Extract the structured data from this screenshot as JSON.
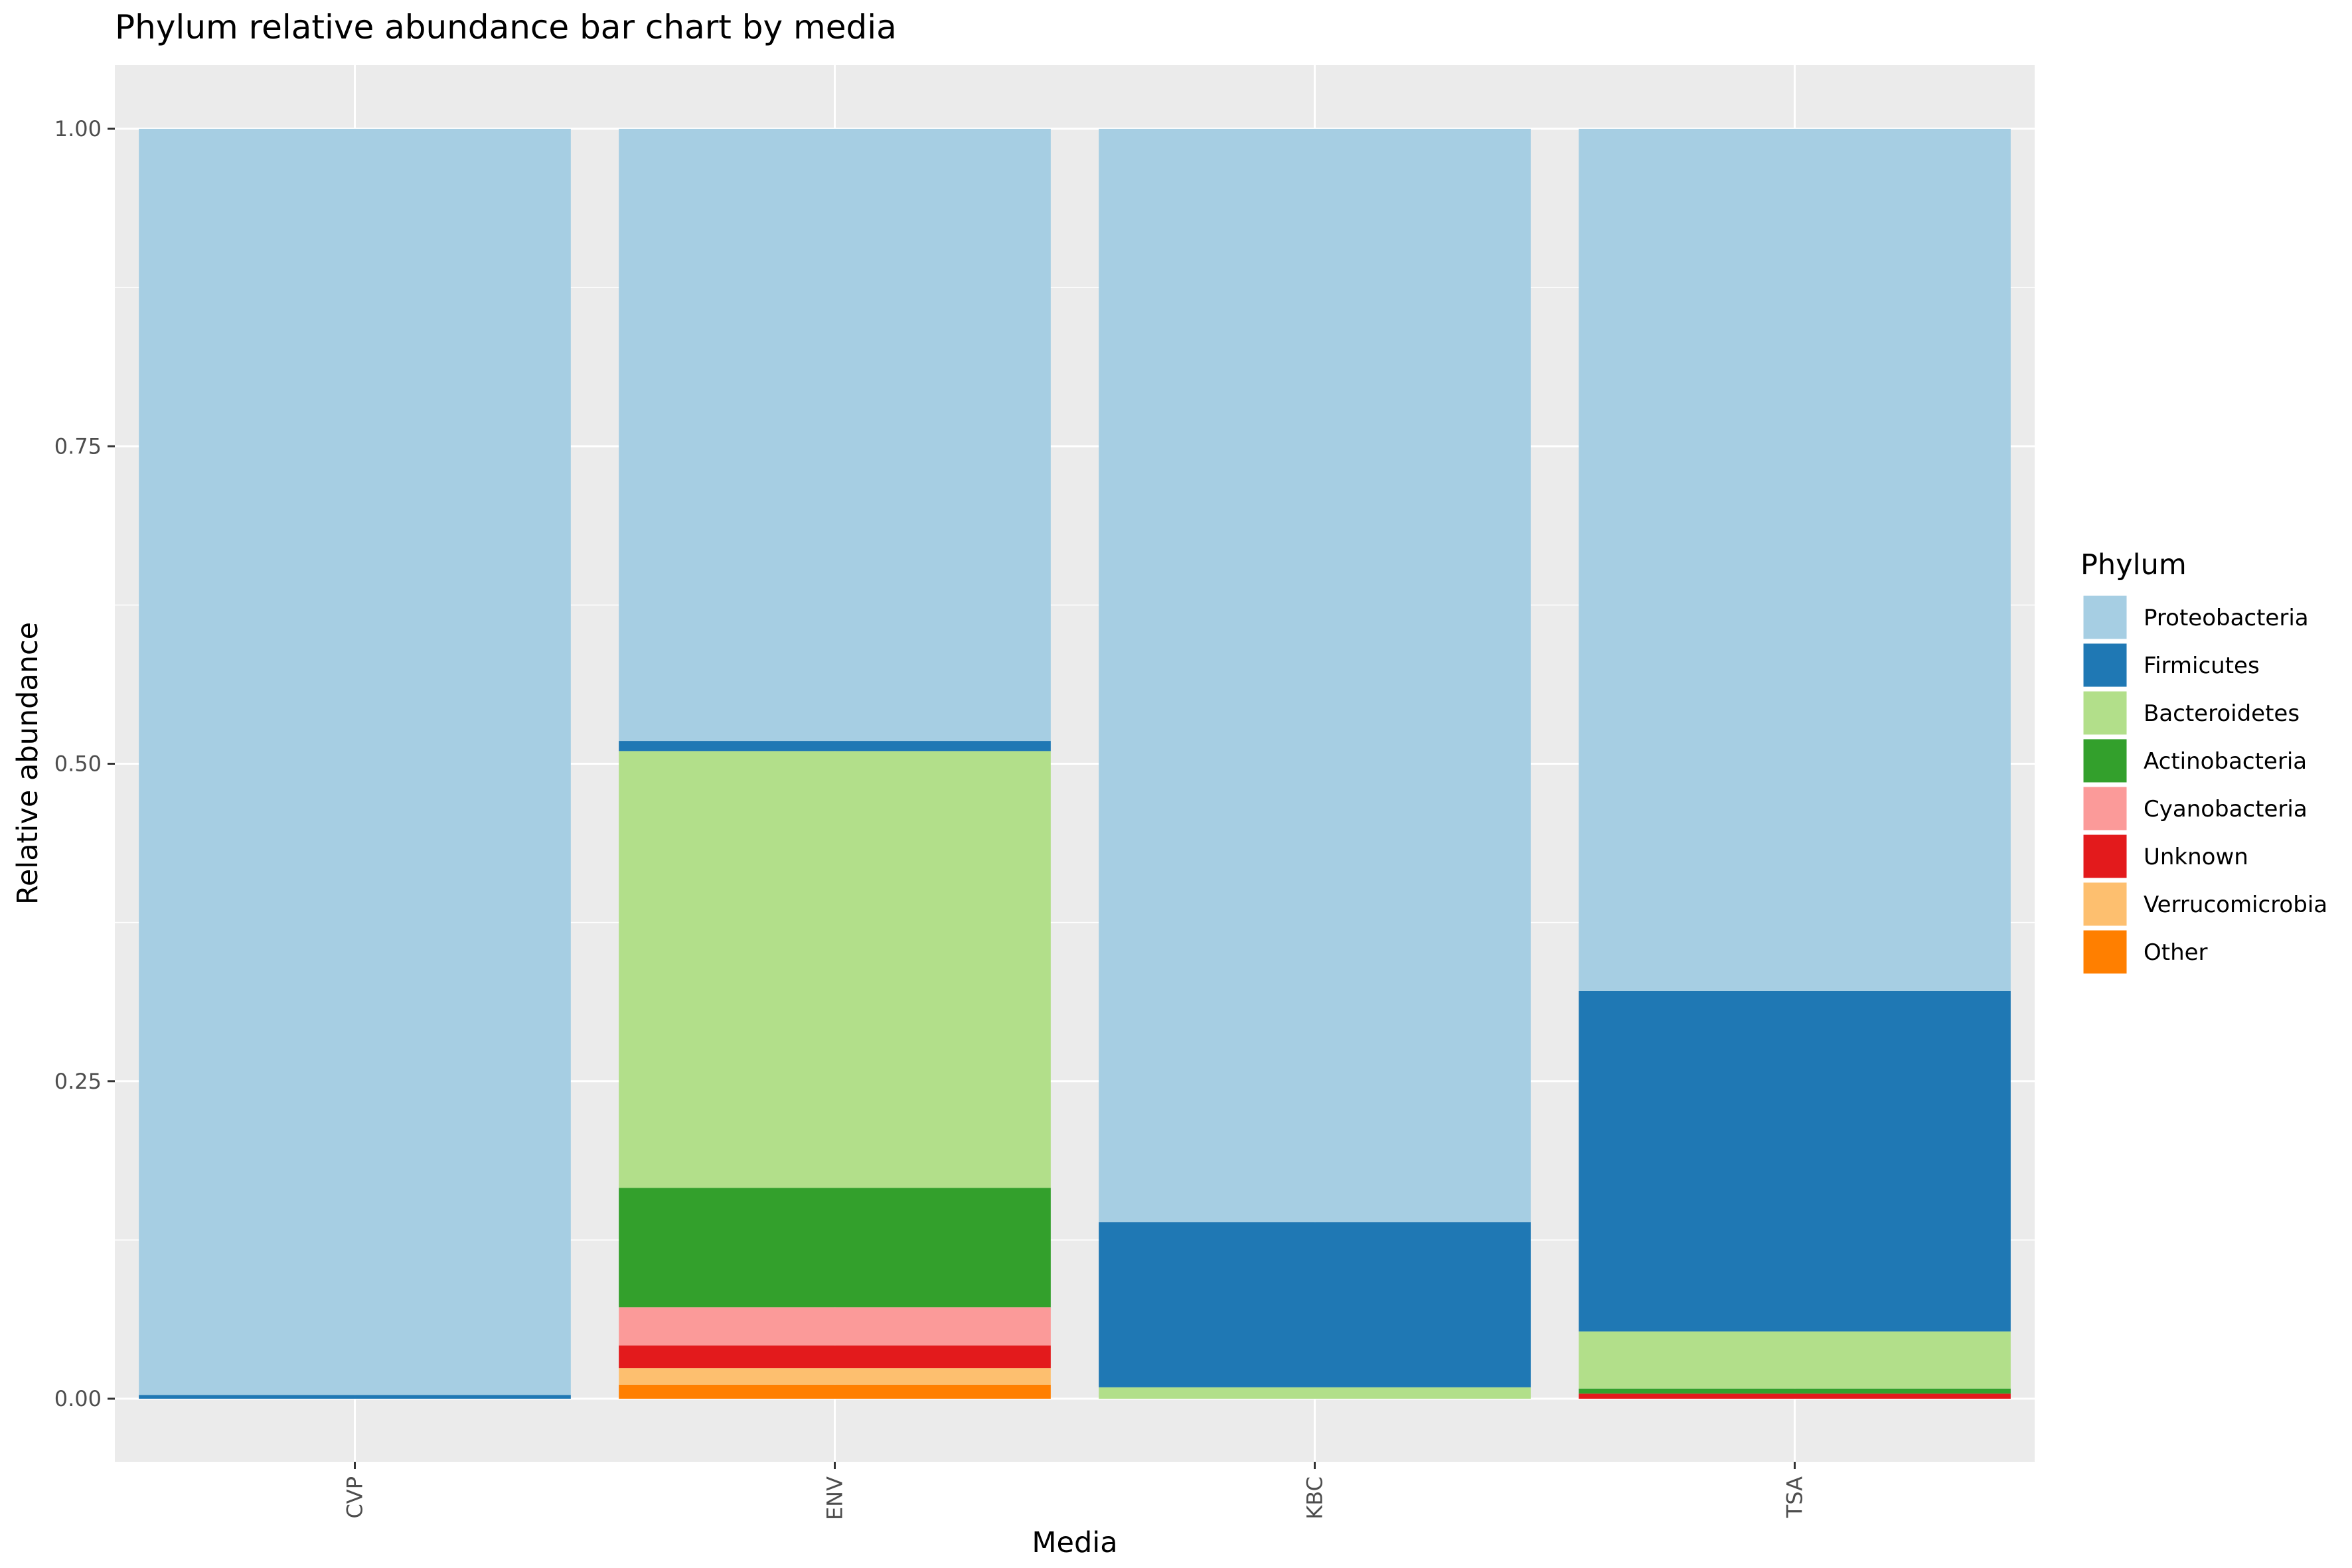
{
  "chart_data": {
    "type": "bar",
    "stacked": true,
    "title": "Phylum relative abundance bar chart by media",
    "xlabel": "Media",
    "ylabel": "Relative abundance",
    "categories": [
      "CVP",
      "ENV",
      "KBC",
      "TSA"
    ],
    "ylim": [
      0,
      1
    ],
    "yticks": [
      0,
      0.25,
      0.5,
      0.75,
      1
    ],
    "ytick_labels": [
      "0.00",
      "0.25",
      "0.50",
      "0.75",
      "1.00"
    ],
    "grid": true,
    "legend": {
      "title": "Phylum",
      "placement": "right"
    },
    "series": [
      {
        "name": "Proteobacteria",
        "color": "#a6cee3",
        "values": [
          0.997,
          0.482,
          0.861,
          0.679
        ]
      },
      {
        "name": "Firmicutes",
        "color": "#1f78b4",
        "values": [
          0.003,
          0.008,
          0.13,
          0.268
        ]
      },
      {
        "name": "Bacteroidetes",
        "color": "#b2df8a",
        "values": [
          0,
          0.344,
          0.009,
          0.045
        ]
      },
      {
        "name": "Actinobacteria",
        "color": "#33a02c",
        "values": [
          0,
          0.094,
          0,
          0.004
        ]
      },
      {
        "name": "Cyanobacteria",
        "color": "#fb9a99",
        "values": [
          0,
          0.03,
          0,
          0
        ]
      },
      {
        "name": "Unknown",
        "color": "#e31a1c",
        "values": [
          0,
          0.018,
          0,
          0.004
        ]
      },
      {
        "name": "Verrucomicrobia",
        "color": "#fdbf6f",
        "values": [
          0,
          0.013,
          0,
          0
        ]
      },
      {
        "name": "Other",
        "color": "#ff7f00",
        "values": [
          0,
          0.011,
          0,
          0
        ]
      }
    ]
  }
}
